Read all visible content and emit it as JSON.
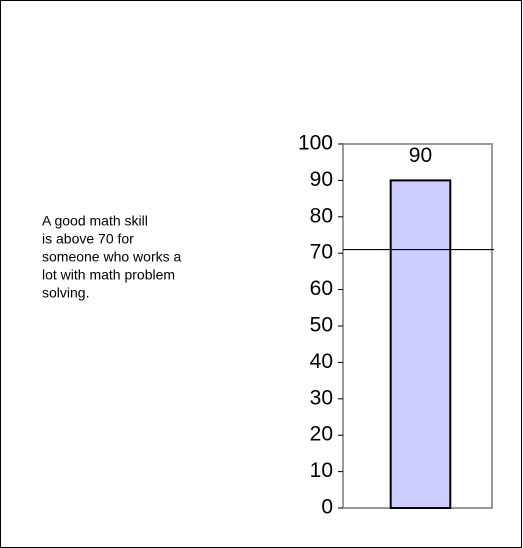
{
  "chart_data": {
    "type": "bar",
    "categories": [
      null
    ],
    "values": [
      90
    ],
    "color": "#ccccff",
    "ylim": [
      0,
      100
    ],
    "yticks": [
      0,
      10,
      20,
      30,
      40,
      50,
      60,
      70,
      80,
      90,
      100
    ],
    "reference_line": 71,
    "annotation": [
      "A good math skill",
      "is above 70 for",
      "someone who works a",
      "lot with math problem",
      "solving."
    ]
  }
}
